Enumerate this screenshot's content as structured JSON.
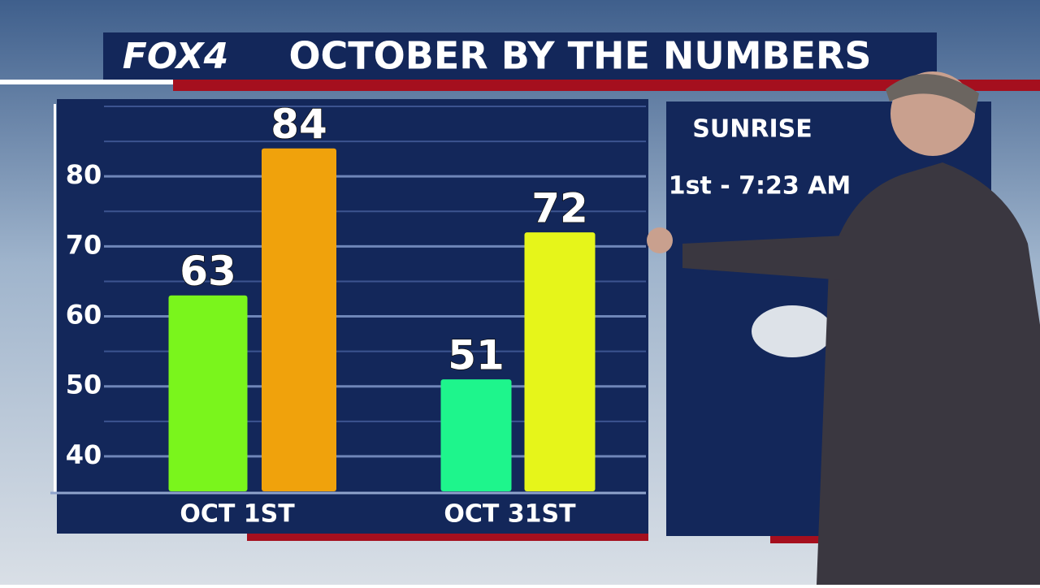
{
  "header": {
    "logo": "FOX4"
  },
  "chart_data": {
    "type": "bar",
    "title": "OCTOBER BY THE NUMBERS",
    "categories": [
      "OCT 1ST",
      "OCT 31ST"
    ],
    "series": [
      {
        "colors": [
          "#7af51c",
          "#1ef58c"
        ],
        "values": [
          63,
          51
        ]
      },
      {
        "colors": [
          "#f0a20c",
          "#e6f51a"
        ],
        "values": [
          84,
          72
        ]
      }
    ],
    "ylim": [
      35,
      90
    ],
    "yticks": [
      40,
      50,
      60,
      70,
      80
    ],
    "minor_yticks": [
      45,
      55,
      65,
      75,
      85,
      90
    ],
    "grid": true
  },
  "panel": {
    "heading": "SUNRISE",
    "line": "1st - 7:23 AM"
  }
}
